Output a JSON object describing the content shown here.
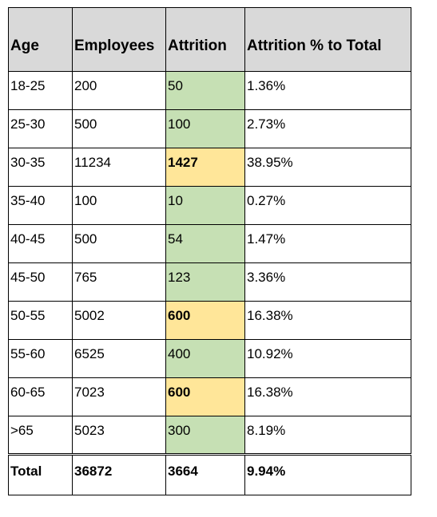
{
  "table": {
    "header": [
      "Age",
      "Employees",
      "Attrition",
      "Attrition % to Total"
    ],
    "rows": [
      [
        "18-25",
        "200",
        "50",
        "1.36%"
      ],
      [
        "25-30",
        "500",
        "100",
        "2.73%"
      ],
      [
        "30-35",
        "11234",
        "1427",
        "38.95%"
      ],
      [
        "35-40",
        "100",
        "10",
        "0.27%"
      ],
      [
        "40-45",
        "500",
        "54",
        "1.47%"
      ],
      [
        "45-50",
        "765",
        "123",
        "3.36%"
      ],
      [
        "50-55",
        "5002",
        "600",
        "16.38%"
      ],
      [
        "55-60",
        "6525",
        "400",
        "10.92%"
      ],
      [
        "60-65",
        "7023",
        "600",
        "16.38%"
      ],
      [
        ">65",
        "5023",
        "300",
        "8.19%"
      ]
    ],
    "highlighted": [
      false,
      false,
      true,
      false,
      false,
      false,
      true,
      false,
      true,
      false
    ],
    "base_color": "#c6e0b4",
    "highlight_color": "#ffe699",
    "header_color": "#d9d9d9",
    "total": [
      "Total",
      "36872",
      "3664",
      "9.94%"
    ]
  }
}
